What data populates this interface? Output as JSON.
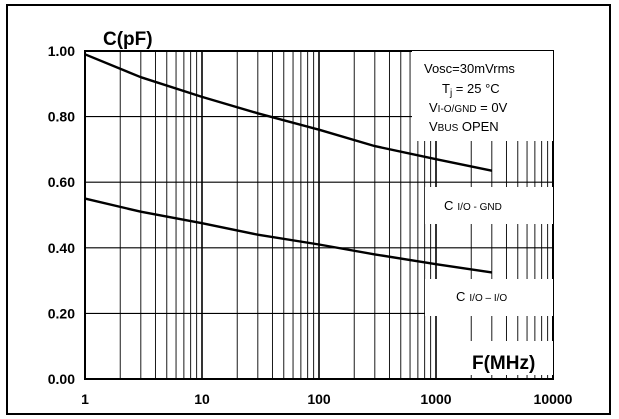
{
  "chart_data": {
    "type": "line",
    "x_scale": "log",
    "xlim": [
      1,
      10000
    ],
    "ylim": [
      0,
      1
    ],
    "grid": true,
    "xlabel": "F(MHz)",
    "ylabel": "C(pF)",
    "x_ticks": [
      "1",
      "10",
      "100",
      "1000",
      "10000"
    ],
    "y_ticks": [
      "0.00",
      "0.20",
      "0.40",
      "0.60",
      "0.80",
      "1.00"
    ],
    "series": [
      {
        "name": "C I/O - GND",
        "x": [
          1,
          3,
          10,
          30,
          100,
          300,
          1000,
          3000
        ],
        "y": [
          0.99,
          0.92,
          0.86,
          0.81,
          0.76,
          0.71,
          0.67,
          0.635
        ]
      },
      {
        "name": "C I/O – I/O",
        "x": [
          1,
          3,
          10,
          30,
          100,
          300,
          1000,
          3000
        ],
        "y": [
          0.55,
          0.51,
          0.475,
          0.44,
          0.41,
          0.38,
          0.35,
          0.325
        ]
      }
    ],
    "conditions": {
      "line1": "Vosc=30mVrms",
      "line2_main": "T",
      "line2_sub": "j",
      "line2_rest": " = 25 °C",
      "line3_main": "V",
      "line3_sub": "I-O/GND",
      "line3_rest": " = 0V",
      "line4_main": "V",
      "line4_sub": "BUS",
      "line4_rest": " OPEN"
    },
    "labels": {
      "gnd_main": "C",
      "gnd_sub": "I/O - GND",
      "io_main": "C",
      "io_sub": "I/O – I/O"
    }
  }
}
